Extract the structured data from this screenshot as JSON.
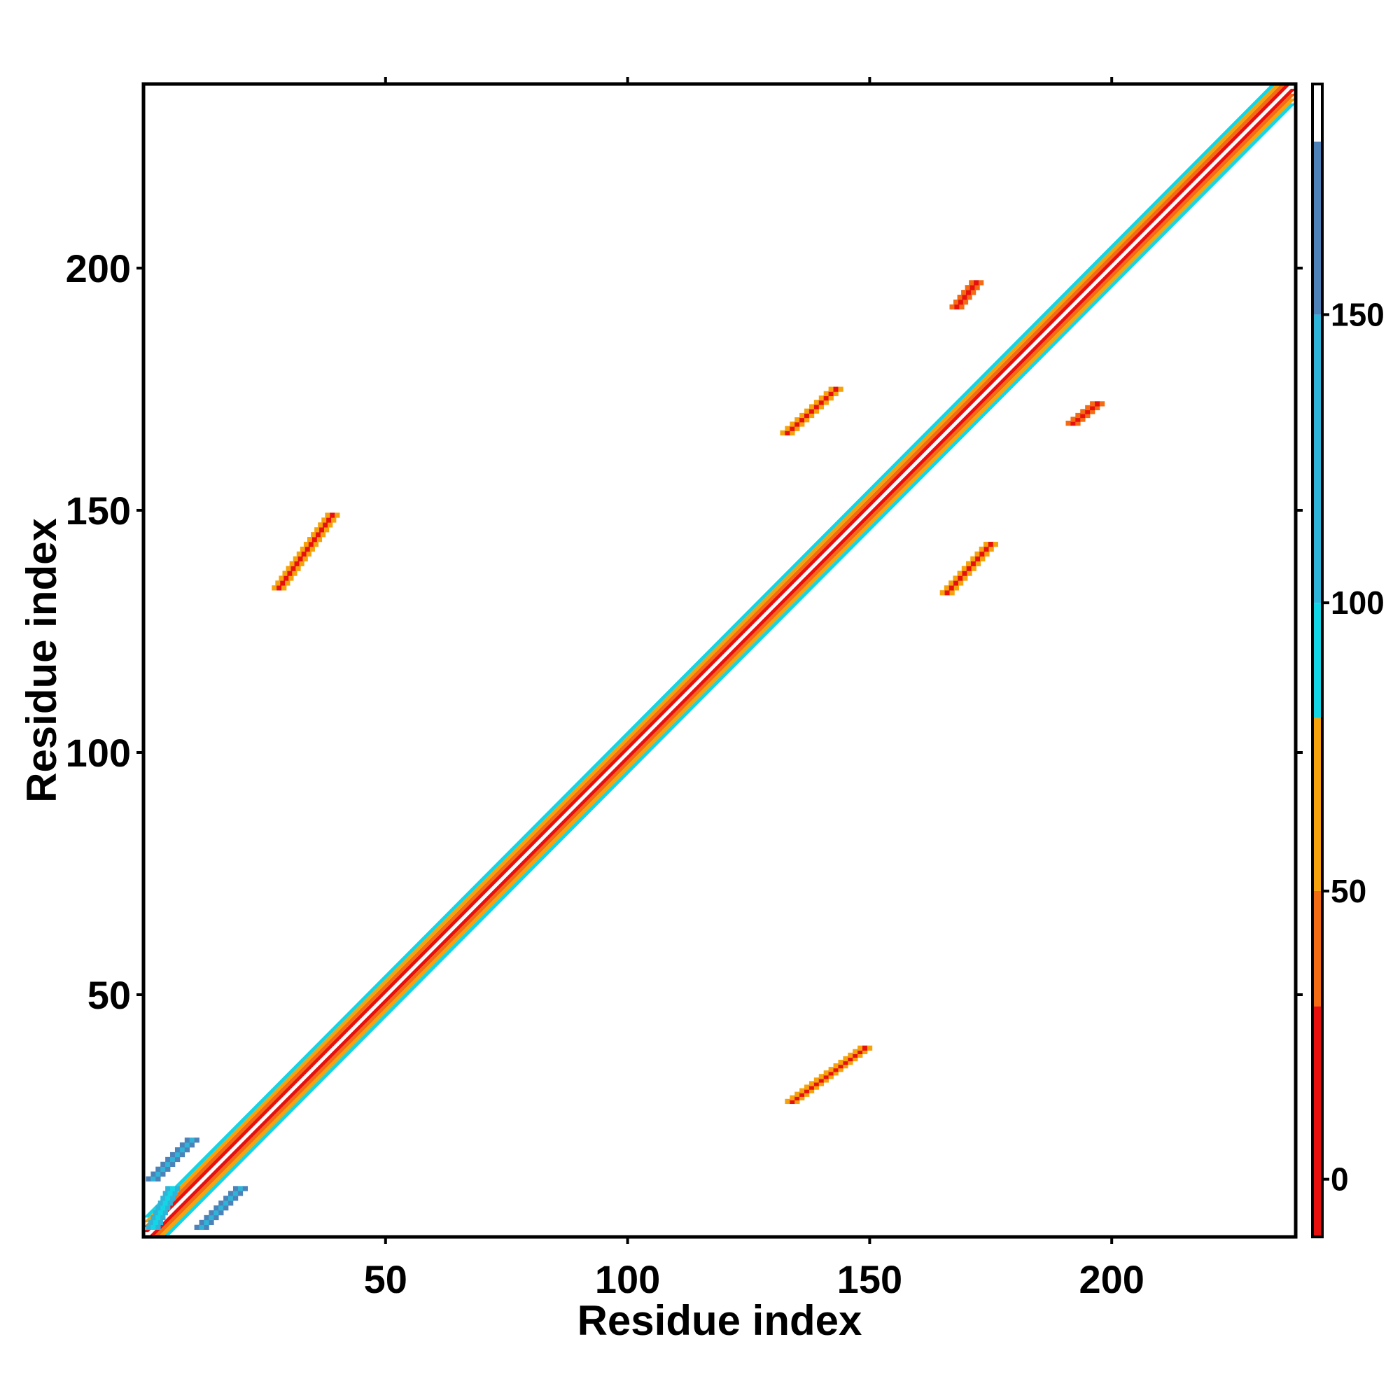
{
  "chart_data": {
    "type": "heatmap",
    "title": "",
    "xlabel": "Residue index",
    "ylabel": "Residue index",
    "xlim": [
      0,
      238
    ],
    "ylim": [
      0,
      238
    ],
    "x_ticks": [
      50,
      100,
      150,
      200
    ],
    "y_ticks": [
      50,
      100,
      150,
      200
    ],
    "colorbar": {
      "range": [
        -10,
        190
      ],
      "ticks": [
        0,
        50,
        100,
        150
      ],
      "bands": [
        {
          "from": -10,
          "to": 30,
          "color": "#e8100e"
        },
        {
          "from": 30,
          "to": 50,
          "color": "#f36b12"
        },
        {
          "from": 50,
          "to": 80,
          "color": "#f5a20c"
        },
        {
          "from": 80,
          "to": 100,
          "color": "#12d6e6"
        },
        {
          "from": 100,
          "to": 150,
          "color": "#2fb4d9"
        },
        {
          "from": 150,
          "to": 180,
          "color": "#4d82b8"
        },
        {
          "from": 180,
          "to": 190,
          "color": "#ffffff"
        }
      ]
    },
    "diagonal": {
      "from": 1,
      "to": 238
    },
    "contact_regions": [
      {
        "x": [
          28,
          39
        ],
        "y": [
          134,
          149
        ],
        "value": 10
      },
      {
        "x": [
          134,
          149
        ],
        "y": [
          28,
          39
        ],
        "value": 10
      },
      {
        "x": [
          133,
          143
        ],
        "y": [
          166,
          175
        ],
        "value": 10
      },
      {
        "x": [
          166,
          175
        ],
        "y": [
          133,
          143
        ],
        "value": 10
      },
      {
        "x": [
          168,
          172
        ],
        "y": [
          192,
          197
        ],
        "value": 8
      },
      {
        "x": [
          192,
          197
        ],
        "y": [
          168,
          172
        ],
        "value": 8
      },
      {
        "x": [
          2,
          6
        ],
        "y": [
          2,
          10
        ],
        "value": 90
      },
      {
        "x": [
          2,
          10
        ],
        "y": [
          12,
          20
        ],
        "value": 120
      },
      {
        "x": [
          12,
          20
        ],
        "y": [
          2,
          10
        ],
        "value": 120
      }
    ]
  }
}
